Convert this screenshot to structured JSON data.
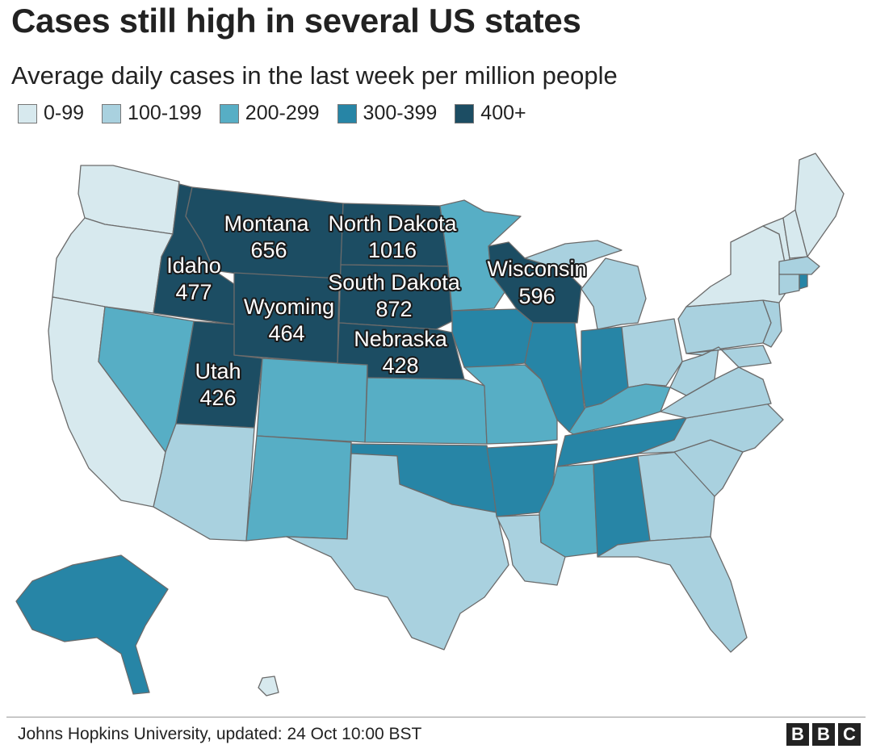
{
  "title": "Cases still high in several US states",
  "subtitle": "Average daily cases in the last week per million people",
  "legend": [
    {
      "label": "0-99",
      "color": "#d7e9ee"
    },
    {
      "label": "100-199",
      "color": "#a9d1df"
    },
    {
      "label": "200-299",
      "color": "#57aec5"
    },
    {
      "label": "300-399",
      "color": "#2785a6"
    },
    {
      "label": "400+",
      "color": "#1c4d63"
    }
  ],
  "labels": [
    {
      "name": "Montana",
      "value": "656"
    },
    {
      "name": "North Dakota",
      "value": "1016"
    },
    {
      "name": "Idaho",
      "value": "477"
    },
    {
      "name": "South Dakota",
      "value": "872"
    },
    {
      "name": "Wisconsin",
      "value": "596"
    },
    {
      "name": "Wyoming",
      "value": "464"
    },
    {
      "name": "Nebraska",
      "value": "428"
    },
    {
      "name": "Utah",
      "value": "426"
    }
  ],
  "chart_data": {
    "type": "choropleth",
    "categories": [
      "0-99",
      "100-199",
      "200-299",
      "300-399",
      "400+"
    ],
    "states": [
      {
        "state": "Washington",
        "category": "0-99"
      },
      {
        "state": "Oregon",
        "category": "0-99"
      },
      {
        "state": "California",
        "category": "0-99"
      },
      {
        "state": "Idaho",
        "category": "400+",
        "value": 477
      },
      {
        "state": "Nevada",
        "category": "200-299"
      },
      {
        "state": "Utah",
        "category": "400+",
        "value": 426
      },
      {
        "state": "Arizona",
        "category": "100-199"
      },
      {
        "state": "Montana",
        "category": "400+",
        "value": 656
      },
      {
        "state": "Wyoming",
        "category": "400+",
        "value": 464
      },
      {
        "state": "Colorado",
        "category": "200-299"
      },
      {
        "state": "New Mexico",
        "category": "200-299"
      },
      {
        "state": "North Dakota",
        "category": "400+",
        "value": 1016
      },
      {
        "state": "South Dakota",
        "category": "400+",
        "value": 872
      },
      {
        "state": "Nebraska",
        "category": "400+",
        "value": 428
      },
      {
        "state": "Kansas",
        "category": "200-299"
      },
      {
        "state": "Oklahoma",
        "category": "300-399"
      },
      {
        "state": "Texas",
        "category": "100-199"
      },
      {
        "state": "Minnesota",
        "category": "200-299"
      },
      {
        "state": "Iowa",
        "category": "300-399"
      },
      {
        "state": "Missouri",
        "category": "200-299"
      },
      {
        "state": "Arkansas",
        "category": "300-399"
      },
      {
        "state": "Louisiana",
        "category": "100-199"
      },
      {
        "state": "Wisconsin",
        "category": "400+",
        "value": 596
      },
      {
        "state": "Illinois",
        "category": "300-399"
      },
      {
        "state": "Michigan",
        "category": "100-199"
      },
      {
        "state": "Indiana",
        "category": "300-399"
      },
      {
        "state": "Ohio",
        "category": "100-199"
      },
      {
        "state": "Kentucky",
        "category": "200-299"
      },
      {
        "state": "Tennessee",
        "category": "300-399"
      },
      {
        "state": "Mississippi",
        "category": "200-299"
      },
      {
        "state": "Alabama",
        "category": "300-399"
      },
      {
        "state": "Georgia",
        "category": "100-199"
      },
      {
        "state": "Florida",
        "category": "100-199"
      },
      {
        "state": "South Carolina",
        "category": "100-199"
      },
      {
        "state": "North Carolina",
        "category": "100-199"
      },
      {
        "state": "Virginia",
        "category": "100-199"
      },
      {
        "state": "West Virginia",
        "category": "100-199"
      },
      {
        "state": "Pennsylvania",
        "category": "100-199"
      },
      {
        "state": "New York",
        "category": "0-99"
      },
      {
        "state": "Vermont",
        "category": "0-99"
      },
      {
        "state": "New Hampshire",
        "category": "0-99"
      },
      {
        "state": "Maine",
        "category": "0-99"
      },
      {
        "state": "Massachusetts",
        "category": "100-199"
      },
      {
        "state": "Connecticut",
        "category": "100-199"
      },
      {
        "state": "Rhode Island",
        "category": "300-399"
      },
      {
        "state": "New Jersey",
        "category": "100-199"
      },
      {
        "state": "Delaware",
        "category": "100-199"
      },
      {
        "state": "Maryland",
        "category": "100-199"
      },
      {
        "state": "Alaska",
        "category": "300-399"
      },
      {
        "state": "Hawaii",
        "category": "0-99"
      }
    ]
  },
  "source": "Johns Hopkins University, updated: 24 Oct 10:00 BST",
  "brand": [
    "B",
    "B",
    "C"
  ]
}
